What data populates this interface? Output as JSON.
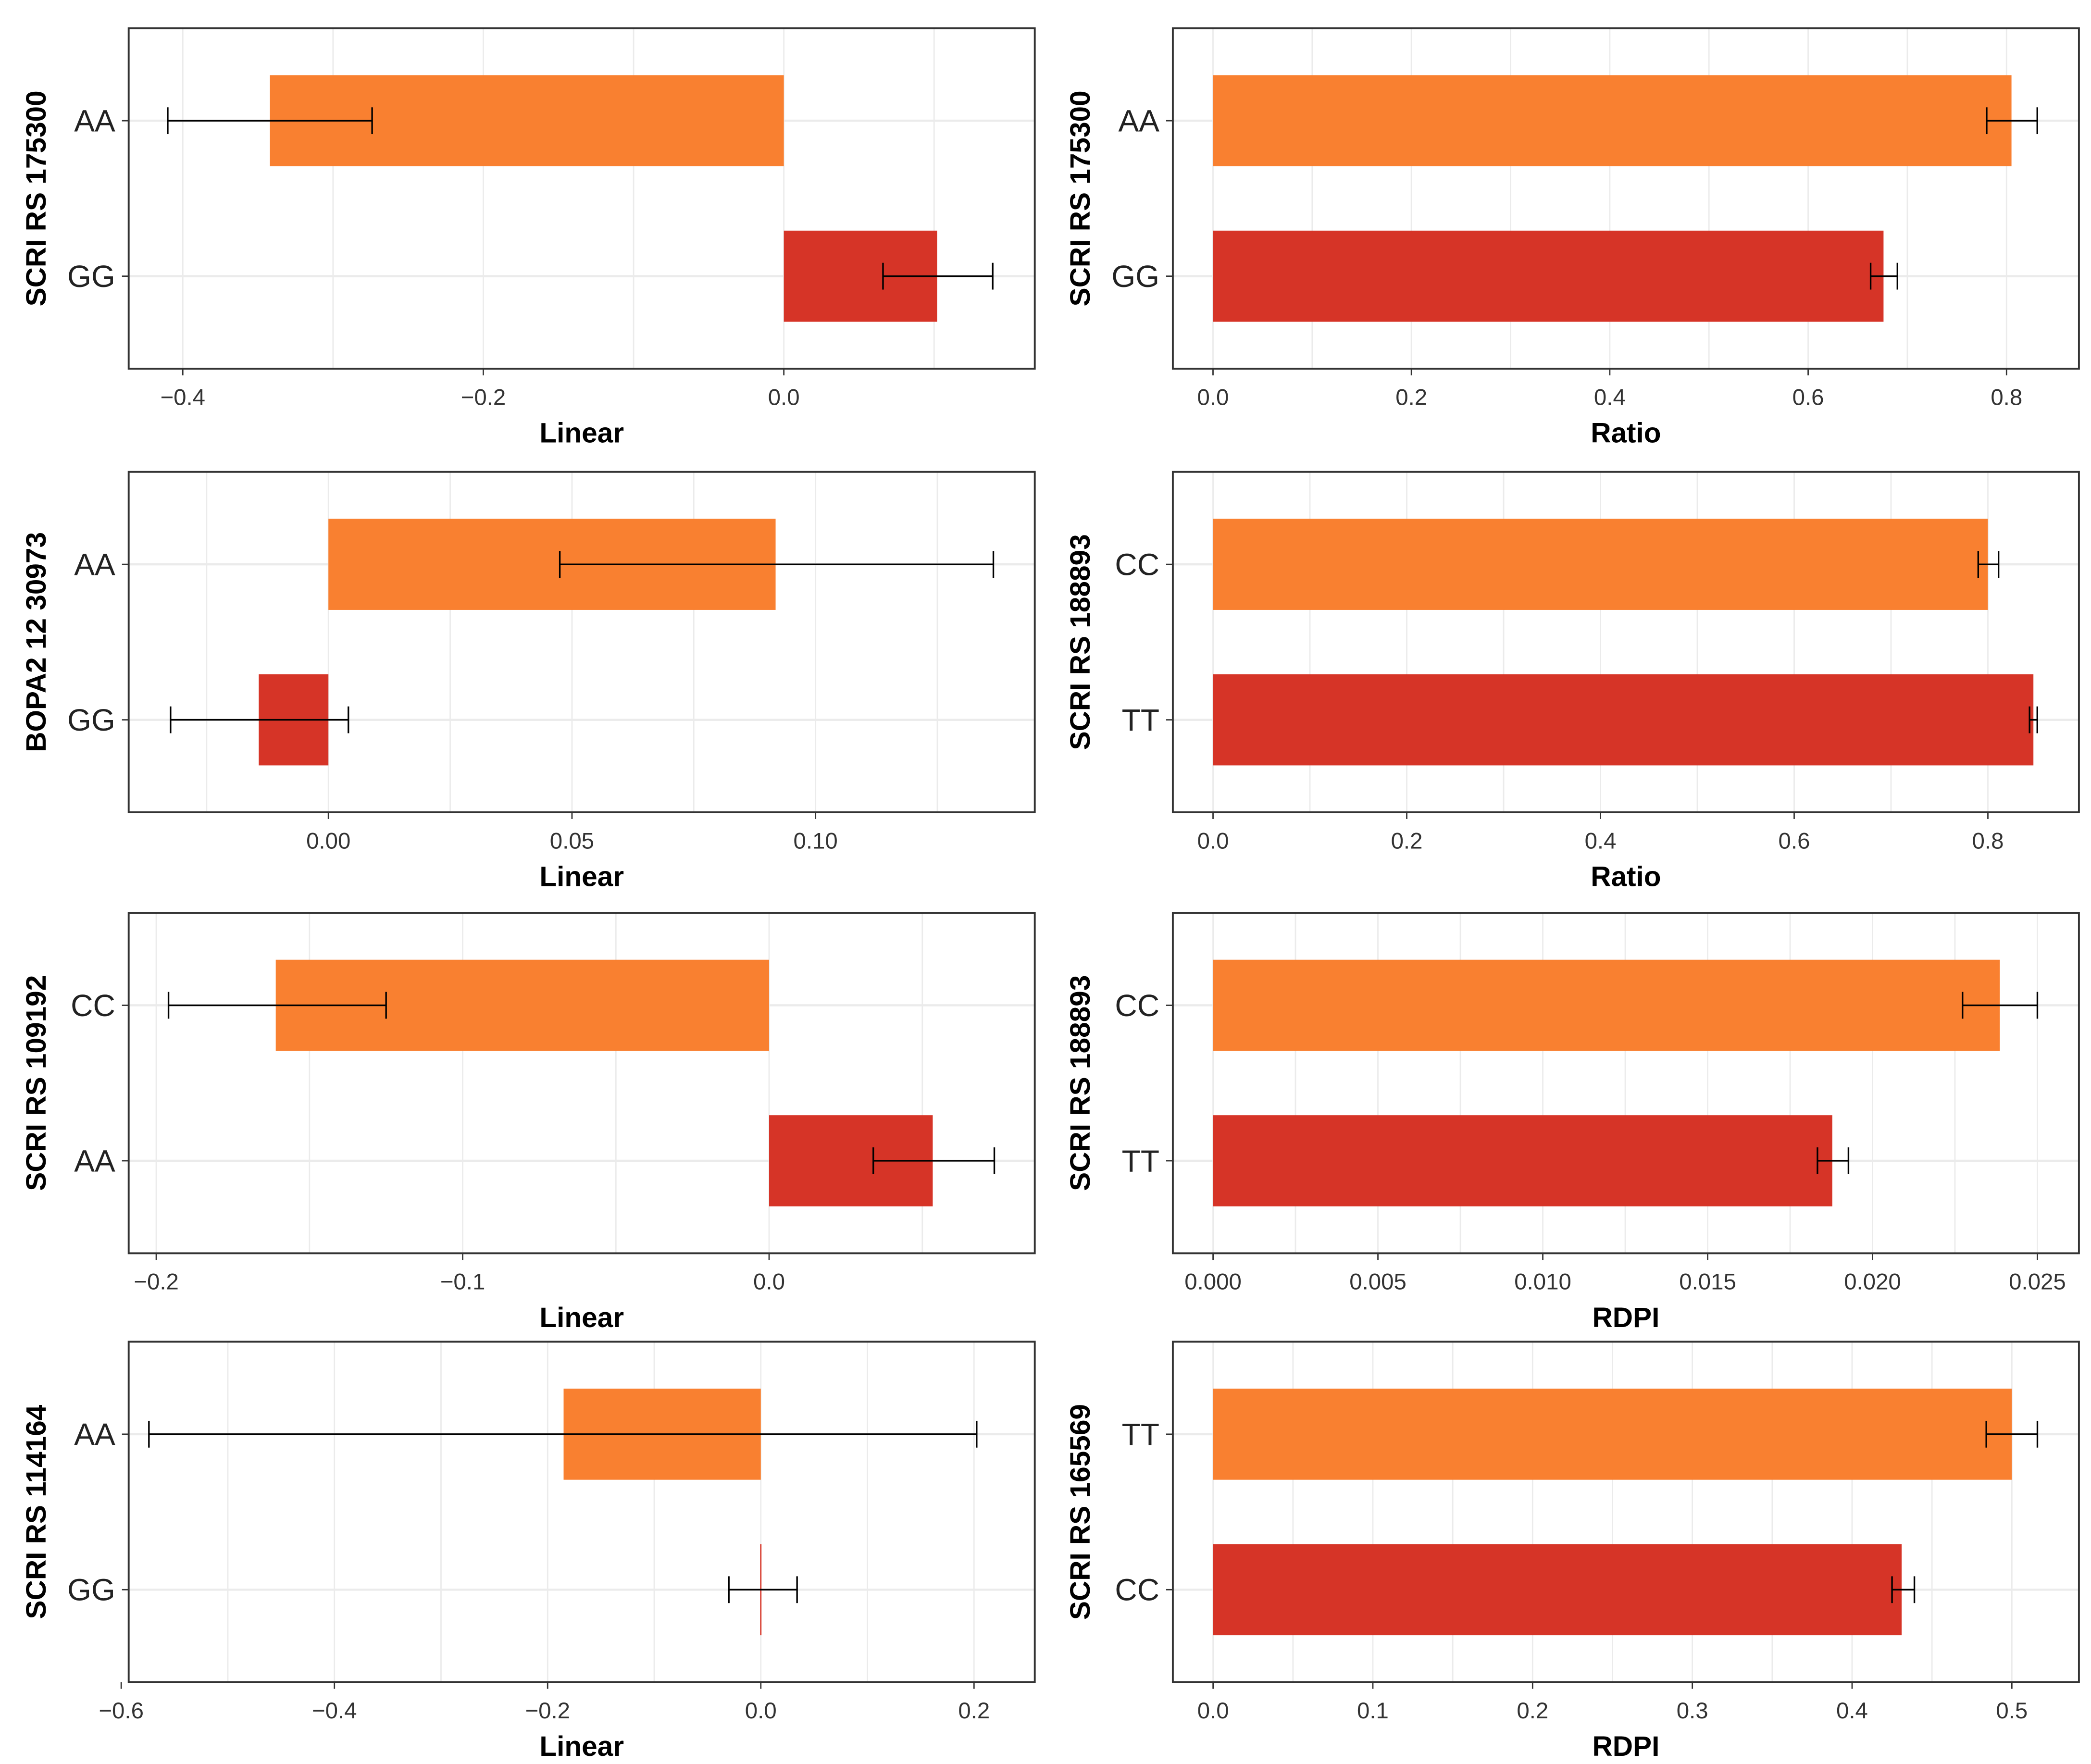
{
  "colors": {
    "top_bar": "#f98030",
    "bottom_bar": "#d63427",
    "grid": "#ebebeb",
    "frame": "#333333",
    "error": "#000000"
  },
  "chart_data": [
    {
      "type": "bar",
      "orientation": "horizontal",
      "ylabel": "SCRI RS 175300",
      "xlabel": "Linear",
      "xlim": [
        -0.436,
        0.167
      ],
      "ticks": [
        -0.4,
        -0.2,
        0.0
      ],
      "tick_labels": [
        "−0.4",
        "−0.2",
        "0.0"
      ],
      "categories": [
        "AA",
        "GG"
      ],
      "values": [
        -0.342,
        0.102
      ],
      "err_low": [
        -0.41,
        0.066
      ],
      "err_high": [
        -0.274,
        0.139
      ]
    },
    {
      "type": "bar",
      "orientation": "horizontal",
      "ylabel": "SCRI RS 175300",
      "xlabel": "Ratio",
      "xlim": [
        -0.0405,
        0.873
      ],
      "ticks": [
        0.0,
        0.2,
        0.4,
        0.6,
        0.8
      ],
      "tick_labels": [
        "0.0",
        "0.2",
        "0.4",
        "0.6",
        "0.8"
      ],
      "categories": [
        "AA",
        "GG"
      ],
      "values": [
        0.805,
        0.676
      ],
      "err_low": [
        0.78,
        0.663
      ],
      "err_high": [
        0.831,
        0.69
      ]
    },
    {
      "type": "bar",
      "orientation": "horizontal",
      "ylabel": "BOPA2 12 30973",
      "xlabel": "Linear",
      "xlim": [
        -0.041,
        0.145
      ],
      "ticks": [
        0.0,
        0.05,
        0.1
      ],
      "tick_labels": [
        "0.00",
        "0.05",
        "0.10"
      ],
      "categories": [
        "AA",
        "GG"
      ],
      "values": [
        0.0918,
        -0.0143
      ],
      "err_low": [
        0.0475,
        -0.0324
      ],
      "err_high": [
        0.1365,
        0.0041
      ]
    },
    {
      "type": "bar",
      "orientation": "horizontal",
      "ylabel": "SCRI RS 188893",
      "xlabel": "Ratio",
      "xlim": [
        -0.0415,
        0.894
      ],
      "ticks": [
        0.0,
        0.2,
        0.4,
        0.6,
        0.8
      ],
      "tick_labels": [
        "0.0",
        "0.2",
        "0.4",
        "0.6",
        "0.8"
      ],
      "categories": [
        "CC",
        "TT"
      ],
      "values": [
        0.8,
        0.847
      ],
      "err_low": [
        0.79,
        0.843
      ],
      "err_high": [
        0.811,
        0.851
      ]
    },
    {
      "type": "bar",
      "orientation": "horizontal",
      "ylabel": "SCRI RS 109192",
      "xlabel": "Linear",
      "xlim": [
        -0.209,
        0.0867
      ],
      "ticks": [
        -0.2,
        -0.1,
        0.0
      ],
      "tick_labels": [
        "−0.2",
        "−0.1",
        "0.0"
      ],
      "categories": [
        "CC",
        "AA"
      ],
      "values": [
        -0.161,
        0.0534
      ],
      "err_low": [
        -0.196,
        0.034
      ],
      "err_high": [
        -0.125,
        0.0735
      ]
    },
    {
      "type": "bar",
      "orientation": "horizontal",
      "ylabel": "SCRI RS 188893",
      "xlabel": "RDPI",
      "xlim": [
        -0.00122,
        0.02626
      ],
      "ticks": [
        0.0,
        0.005,
        0.01,
        0.015,
        0.02,
        0.025
      ],
      "tick_labels": [
        "0.000",
        "0.005",
        "0.010",
        "0.015",
        "0.020",
        "0.025"
      ],
      "categories": [
        "CC",
        "TT"
      ],
      "values": [
        0.02386,
        0.01878
      ],
      "err_low": [
        0.02273,
        0.01833
      ],
      "err_high": [
        0.025,
        0.01927
      ]
    },
    {
      "type": "bar",
      "orientation": "horizontal",
      "ylabel": "SCRI RS 114164",
      "xlabel": "Linear",
      "xlim": [
        -0.593,
        0.257
      ],
      "ticks": [
        -0.6,
        -0.4,
        -0.2,
        0.0,
        0.2
      ],
      "tick_labels": [
        "−0.6",
        "−0.4",
        "−0.2",
        "0.0",
        "0.2"
      ],
      "categories": [
        "AA",
        "GG"
      ],
      "values": [
        -0.185,
        0.0
      ],
      "err_low": [
        -0.574,
        -0.03
      ],
      "err_high": [
        0.2025,
        0.034
      ]
    },
    {
      "type": "bar",
      "orientation": "horizontal",
      "ylabel": "SCRI RS 165569",
      "xlabel": "RDPI",
      "xlim": [
        -0.0252,
        0.542
      ],
      "ticks": [
        0.0,
        0.1,
        0.2,
        0.3,
        0.4,
        0.5
      ],
      "tick_labels": [
        "0.0",
        "0.1",
        "0.2",
        "0.3",
        "0.4",
        "0.5"
      ],
      "categories": [
        "TT",
        "CC"
      ],
      "values": [
        0.5,
        0.431
      ],
      "err_low": [
        0.484,
        0.425
      ],
      "err_high": [
        0.516,
        0.439
      ]
    }
  ]
}
